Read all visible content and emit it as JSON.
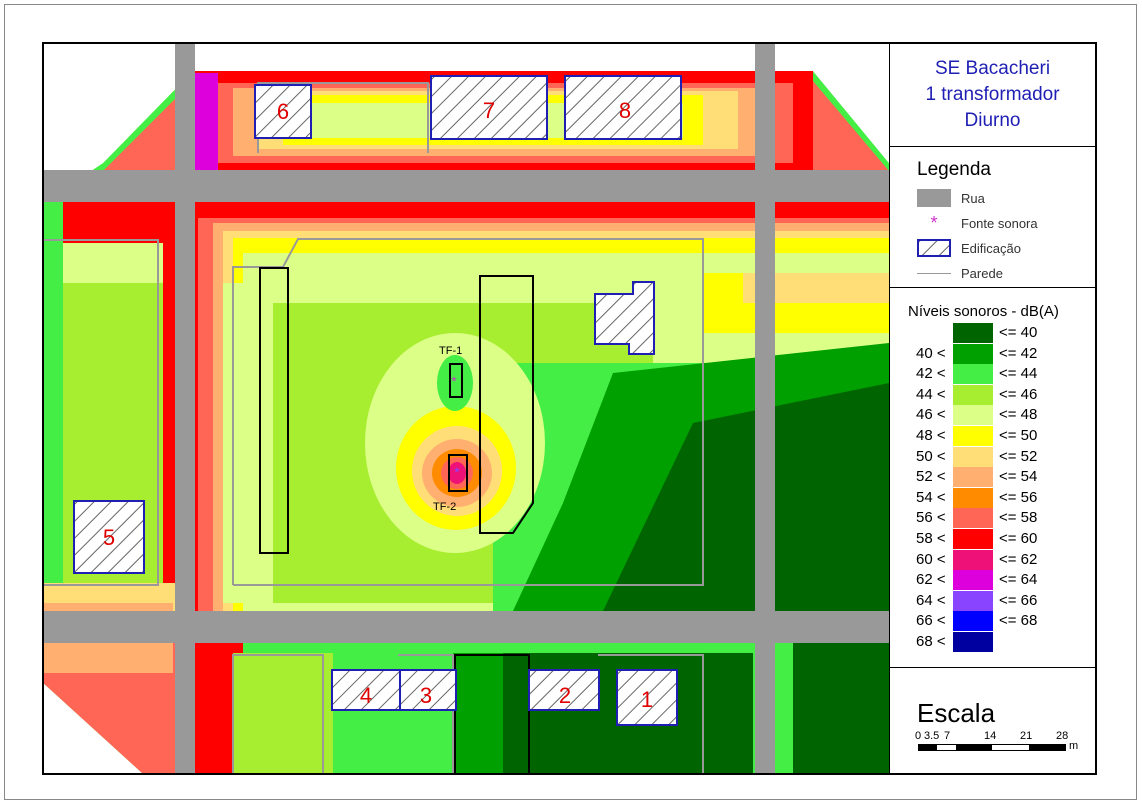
{
  "title": {
    "line1": "SE Bacacheri",
    "line2": "1 transformador",
    "line3": "Diurno"
  },
  "legend": {
    "heading": "Legenda",
    "items": [
      {
        "label": "Rua",
        "icon": "street-swatch",
        "color": "#999999"
      },
      {
        "label": "Fonte sonora",
        "icon": "asterisk-icon",
        "color": "#cc33cc"
      },
      {
        "label": "Edificação",
        "icon": "hatched-building-swatch",
        "color": "#1f1fb4"
      },
      {
        "label": "Parede",
        "icon": "wall-line",
        "color": "#999999"
      }
    ]
  },
  "levels": {
    "heading": "Níveis sonoros - dB(A)",
    "rows": [
      {
        "lo": "",
        "hi": "<= 40",
        "color": "#006400"
      },
      {
        "lo": "40 <",
        "hi": "<= 42",
        "color": "#00a000"
      },
      {
        "lo": "42 <",
        "hi": "<= 44",
        "color": "#44ee44"
      },
      {
        "lo": "44 <",
        "hi": "<= 46",
        "color": "#a8ee30"
      },
      {
        "lo": "46 <",
        "hi": "<= 48",
        "color": "#dcff88"
      },
      {
        "lo": "48 <",
        "hi": "<= 50",
        "color": "#ffff00"
      },
      {
        "lo": "50 <",
        "hi": "<= 52",
        "color": "#ffdd77"
      },
      {
        "lo": "52 <",
        "hi": "<= 54",
        "color": "#ffb070"
      },
      {
        "lo": "54 <",
        "hi": "<= 56",
        "color": "#ff8c00"
      },
      {
        "lo": "56 <",
        "hi": "<= 58",
        "color": "#ff6655"
      },
      {
        "lo": "58 <",
        "hi": "<= 60",
        "color": "#ff0000"
      },
      {
        "lo": "60 <",
        "hi": "<= 62",
        "color": "#ee1177"
      },
      {
        "lo": "62 <",
        "hi": "<= 64",
        "color": "#dd00dd"
      },
      {
        "lo": "64 <",
        "hi": "<= 66",
        "color": "#8844ff"
      },
      {
        "lo": "66 <",
        "hi": "<= 68",
        "color": "#0000ff"
      },
      {
        "lo": "68 <",
        "hi": "",
        "color": "#0000a0"
      }
    ]
  },
  "scale": {
    "heading": "Escala",
    "ticks": [
      "0",
      "3.5",
      "7",
      "14",
      "21",
      "28"
    ],
    "unit": "m"
  },
  "map": {
    "buildings": [
      "1",
      "2",
      "3",
      "4",
      "5",
      "6",
      "7",
      "8"
    ],
    "sources": [
      "TF-1",
      "TF-2"
    ]
  }
}
